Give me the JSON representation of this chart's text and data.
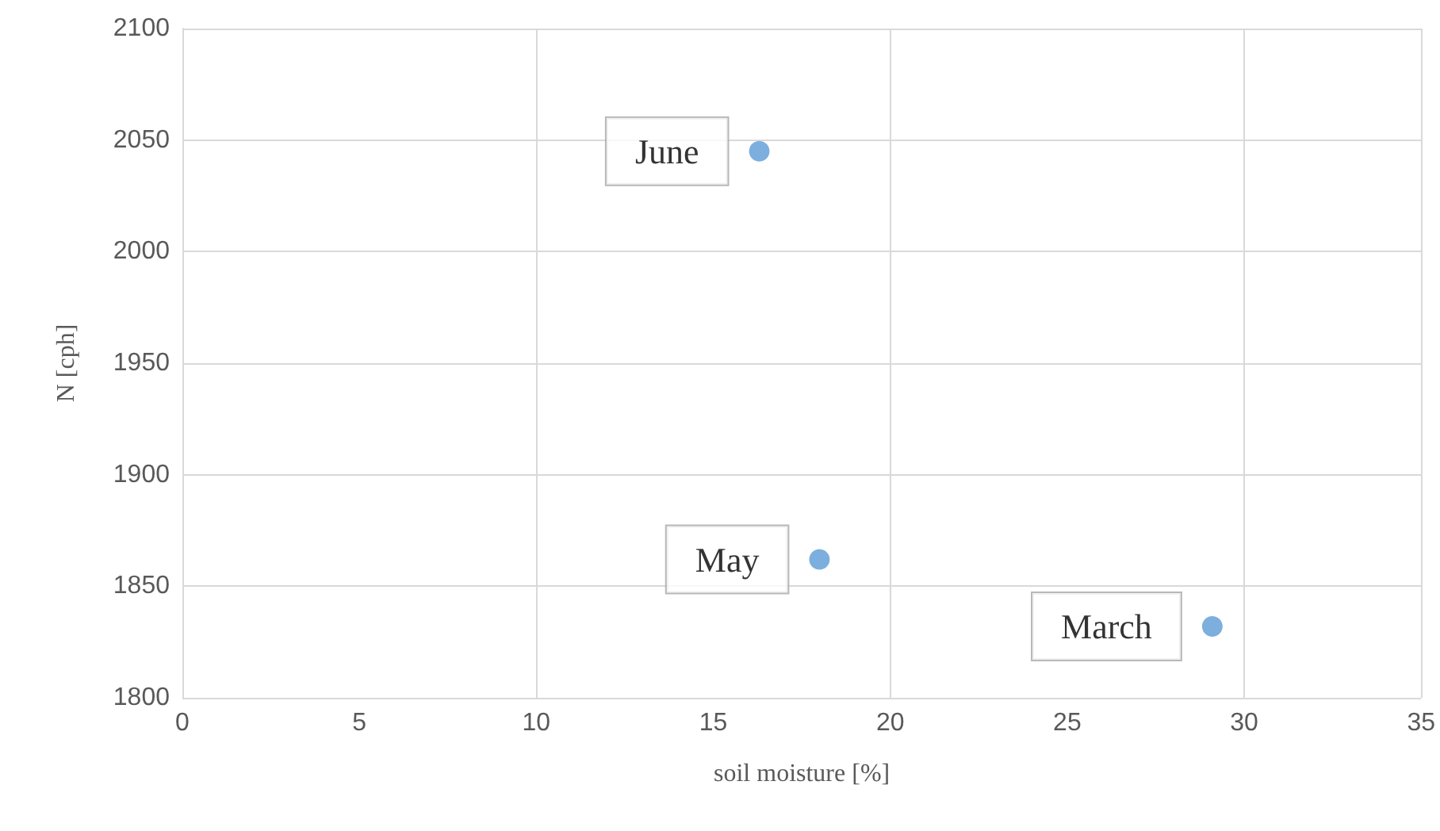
{
  "chart_data": {
    "type": "scatter",
    "xlabel": "soil moisture [%]",
    "ylabel": "N [cph]",
    "x": [
      16.3,
      18.0,
      29.1
    ],
    "series": [
      {
        "color": "#5b9bd5",
        "values": [
          2045,
          1862,
          1832
        ]
      }
    ],
    "annotations": [
      {
        "text": "June",
        "x": 16.3,
        "y": 2045
      },
      {
        "text": "May",
        "x": 18.0,
        "y": 1862
      },
      {
        "text": "March",
        "x": 29.1,
        "y": 1832
      }
    ],
    "xlim": [
      0,
      35
    ],
    "xticks": [
      0,
      5,
      10,
      15,
      20,
      25,
      30,
      35
    ],
    "ylim": [
      1800,
      2100
    ],
    "yticks": [
      1800,
      1850,
      1900,
      1950,
      2000,
      2050,
      2100
    ],
    "grid": true,
    "marker": "circle"
  }
}
